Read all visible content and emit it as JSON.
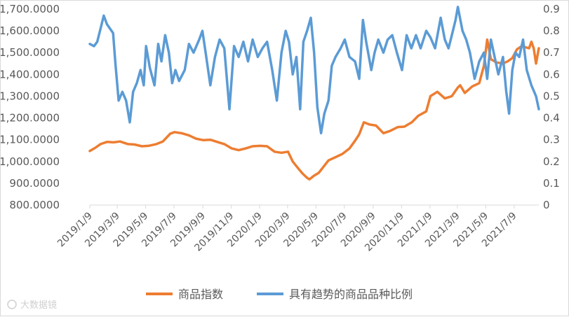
{
  "chart_data": {
    "type": "line",
    "title": "",
    "xlabel": "",
    "ylabel": "",
    "y_left": {
      "min": 800,
      "max": 1700,
      "ticks": [
        "800.0000",
        "900.0000",
        "1,000.0000",
        "1,100.0000",
        "1,200.0000",
        "1,300.0000",
        "1,400.0000",
        "1,500.0000",
        "1,600.0000",
        "1,700.0000"
      ]
    },
    "y_right": {
      "min": 0,
      "max": 0.9,
      "ticks": [
        "0",
        "0.1",
        "0.2",
        "0.3",
        "0.4",
        "0.5",
        "0.6",
        "0.7",
        "0.8",
        "0.9"
      ]
    },
    "x_start": "2019-01-09",
    "x_end": "2021-08-31",
    "x_ticks": [
      {
        "date": "2019-01-09",
        "label": "2019/1/9"
      },
      {
        "date": "2019-03-09",
        "label": "2019/3/9"
      },
      {
        "date": "2019-05-09",
        "label": "2019/5/9"
      },
      {
        "date": "2019-07-09",
        "label": "2019/7/9"
      },
      {
        "date": "2019-09-09",
        "label": "2019/9/9"
      },
      {
        "date": "2019-11-09",
        "label": "2019/11/9"
      },
      {
        "date": "2020-01-09",
        "label": "2020/1/9"
      },
      {
        "date": "2020-03-09",
        "label": "2020/3/9"
      },
      {
        "date": "2020-05-09",
        "label": "2020/5/9"
      },
      {
        "date": "2020-07-09",
        "label": "2020/7/9"
      },
      {
        "date": "2020-09-09",
        "label": "2020/9/9"
      },
      {
        "date": "2020-11-09",
        "label": "2020/11/9"
      },
      {
        "date": "2021-01-09",
        "label": "2021/1/9"
      },
      {
        "date": "2021-03-09",
        "label": "2021/3/9"
      },
      {
        "date": "2021-05-09",
        "label": "2021/5/9"
      },
      {
        "date": "2021-07-09",
        "label": "2021/7/9"
      }
    ],
    "legend_placement": "bottom",
    "grid": false,
    "series": [
      {
        "name": "商品指数",
        "axis": "left",
        "color": "#ED7D31",
        "points": [
          [
            "2019-01-09",
            1048
          ],
          [
            "2019-01-20",
            1062
          ],
          [
            "2019-02-01",
            1080
          ],
          [
            "2019-02-15",
            1090
          ],
          [
            "2019-03-01",
            1088
          ],
          [
            "2019-03-15",
            1092
          ],
          [
            "2019-04-01",
            1080
          ],
          [
            "2019-04-15",
            1078
          ],
          [
            "2019-05-01",
            1070
          ],
          [
            "2019-05-15",
            1072
          ],
          [
            "2019-06-01",
            1080
          ],
          [
            "2019-06-15",
            1092
          ],
          [
            "2019-07-01",
            1128
          ],
          [
            "2019-07-10",
            1135
          ],
          [
            "2019-07-25",
            1130
          ],
          [
            "2019-08-10",
            1120
          ],
          [
            "2019-08-25",
            1105
          ],
          [
            "2019-09-10",
            1098
          ],
          [
            "2019-09-25",
            1100
          ],
          [
            "2019-10-10",
            1090
          ],
          [
            "2019-10-25",
            1080
          ],
          [
            "2019-11-10",
            1060
          ],
          [
            "2019-11-25",
            1052
          ],
          [
            "2019-12-10",
            1060
          ],
          [
            "2019-12-25",
            1070
          ],
          [
            "2020-01-10",
            1072
          ],
          [
            "2020-01-25",
            1070
          ],
          [
            "2020-02-10",
            1045
          ],
          [
            "2020-02-25",
            1040
          ],
          [
            "2020-03-10",
            1045
          ],
          [
            "2020-03-20",
            1000
          ],
          [
            "2020-04-01",
            968
          ],
          [
            "2020-04-10",
            945
          ],
          [
            "2020-04-20",
            925
          ],
          [
            "2020-04-25",
            918
          ],
          [
            "2020-05-05",
            935
          ],
          [
            "2020-05-15",
            948
          ],
          [
            "2020-05-25",
            975
          ],
          [
            "2020-06-05",
            1005
          ],
          [
            "2020-06-20",
            1020
          ],
          [
            "2020-07-05",
            1035
          ],
          [
            "2020-07-20",
            1060
          ],
          [
            "2020-08-01",
            1095
          ],
          [
            "2020-08-10",
            1125
          ],
          [
            "2020-08-20",
            1180
          ],
          [
            "2020-09-01",
            1170
          ],
          [
            "2020-09-15",
            1165
          ],
          [
            "2020-10-01",
            1130
          ],
          [
            "2020-10-15",
            1140
          ],
          [
            "2020-11-01",
            1158
          ],
          [
            "2020-11-15",
            1160
          ],
          [
            "2020-12-01",
            1180
          ],
          [
            "2020-12-15",
            1210
          ],
          [
            "2021-01-01",
            1230
          ],
          [
            "2021-01-10",
            1300
          ],
          [
            "2021-01-25",
            1320
          ],
          [
            "2021-02-10",
            1290
          ],
          [
            "2021-02-25",
            1300
          ],
          [
            "2021-03-10",
            1340
          ],
          [
            "2021-03-15",
            1350
          ],
          [
            "2021-03-25",
            1315
          ],
          [
            "2021-04-10",
            1345
          ],
          [
            "2021-04-25",
            1360
          ],
          [
            "2021-05-05",
            1440
          ],
          [
            "2021-05-12",
            1560
          ],
          [
            "2021-05-20",
            1470
          ],
          [
            "2021-06-01",
            1455
          ],
          [
            "2021-06-15",
            1450
          ],
          [
            "2021-06-25",
            1460
          ],
          [
            "2021-07-05",
            1475
          ],
          [
            "2021-07-15",
            1515
          ],
          [
            "2021-07-25",
            1530
          ],
          [
            "2021-08-10",
            1520
          ],
          [
            "2021-08-15",
            1550
          ],
          [
            "2021-08-20",
            1520
          ],
          [
            "2021-08-25",
            1450
          ],
          [
            "2021-08-31",
            1520
          ]
        ]
      },
      {
        "name": "具有趋势的商品品种比例",
        "axis": "right",
        "color": "#5B9BD5",
        "points": [
          [
            "2019-01-09",
            0.74
          ],
          [
            "2019-01-18",
            0.73
          ],
          [
            "2019-01-25",
            0.75
          ],
          [
            "2019-02-01",
            0.81
          ],
          [
            "2019-02-08",
            0.87
          ],
          [
            "2019-02-15",
            0.83
          ],
          [
            "2019-02-28",
            0.79
          ],
          [
            "2019-03-05",
            0.65
          ],
          [
            "2019-03-12",
            0.48
          ],
          [
            "2019-03-20",
            0.52
          ],
          [
            "2019-03-28",
            0.48
          ],
          [
            "2019-04-05",
            0.38
          ],
          [
            "2019-04-12",
            0.52
          ],
          [
            "2019-04-20",
            0.56
          ],
          [
            "2019-04-28",
            0.62
          ],
          [
            "2019-05-05",
            0.55
          ],
          [
            "2019-05-10",
            0.73
          ],
          [
            "2019-05-18",
            0.63
          ],
          [
            "2019-05-28",
            0.55
          ],
          [
            "2019-06-05",
            0.74
          ],
          [
            "2019-06-12",
            0.66
          ],
          [
            "2019-06-20",
            0.78
          ],
          [
            "2019-06-28",
            0.7
          ],
          [
            "2019-07-05",
            0.56
          ],
          [
            "2019-07-12",
            0.62
          ],
          [
            "2019-07-20",
            0.57
          ],
          [
            "2019-08-01",
            0.62
          ],
          [
            "2019-08-10",
            0.74
          ],
          [
            "2019-08-20",
            0.7
          ],
          [
            "2019-09-01",
            0.76
          ],
          [
            "2019-09-08",
            0.8
          ],
          [
            "2019-09-15",
            0.7
          ],
          [
            "2019-09-25",
            0.55
          ],
          [
            "2019-10-05",
            0.68
          ],
          [
            "2019-10-15",
            0.76
          ],
          [
            "2019-10-25",
            0.72
          ],
          [
            "2019-11-05",
            0.44
          ],
          [
            "2019-11-15",
            0.73
          ],
          [
            "2019-11-25",
            0.68
          ],
          [
            "2019-12-05",
            0.75
          ],
          [
            "2019-12-15",
            0.66
          ],
          [
            "2019-12-25",
            0.76
          ],
          [
            "2020-01-05",
            0.68
          ],
          [
            "2020-01-15",
            0.72
          ],
          [
            "2020-01-25",
            0.75
          ],
          [
            "2020-02-05",
            0.62
          ],
          [
            "2020-02-15",
            0.48
          ],
          [
            "2020-02-25",
            0.7
          ],
          [
            "2020-03-05",
            0.8
          ],
          [
            "2020-03-12",
            0.75
          ],
          [
            "2020-03-20",
            0.6
          ],
          [
            "2020-03-28",
            0.68
          ],
          [
            "2020-04-05",
            0.44
          ],
          [
            "2020-04-12",
            0.75
          ],
          [
            "2020-04-20",
            0.8
          ],
          [
            "2020-04-28",
            0.86
          ],
          [
            "2020-05-05",
            0.7
          ],
          [
            "2020-05-12",
            0.45
          ],
          [
            "2020-05-20",
            0.33
          ],
          [
            "2020-05-27",
            0.42
          ],
          [
            "2020-06-05",
            0.48
          ],
          [
            "2020-06-12",
            0.64
          ],
          [
            "2020-06-20",
            0.68
          ],
          [
            "2020-07-01",
            0.72
          ],
          [
            "2020-07-10",
            0.76
          ],
          [
            "2020-07-20",
            0.68
          ],
          [
            "2020-08-01",
            0.66
          ],
          [
            "2020-08-10",
            0.58
          ],
          [
            "2020-08-18",
            0.85
          ],
          [
            "2020-08-25",
            0.75
          ],
          [
            "2020-09-05",
            0.62
          ],
          [
            "2020-09-12",
            0.7
          ],
          [
            "2020-09-20",
            0.76
          ],
          [
            "2020-10-01",
            0.7
          ],
          [
            "2020-10-10",
            0.76
          ],
          [
            "2020-10-20",
            0.78
          ],
          [
            "2020-10-30",
            0.7
          ],
          [
            "2020-11-10",
            0.62
          ],
          [
            "2020-11-20",
            0.78
          ],
          [
            "2020-11-30",
            0.72
          ],
          [
            "2020-12-10",
            0.78
          ],
          [
            "2020-12-20",
            0.72
          ],
          [
            "2021-01-01",
            0.8
          ],
          [
            "2021-01-10",
            0.77
          ],
          [
            "2021-01-20",
            0.72
          ],
          [
            "2021-02-01",
            0.86
          ],
          [
            "2021-02-10",
            0.76
          ],
          [
            "2021-02-18",
            0.72
          ],
          [
            "2021-02-25",
            0.78
          ],
          [
            "2021-03-05",
            0.85
          ],
          [
            "2021-03-10",
            0.91
          ],
          [
            "2021-03-20",
            0.8
          ],
          [
            "2021-03-28",
            0.76
          ],
          [
            "2021-04-05",
            0.7
          ],
          [
            "2021-04-15",
            0.58
          ],
          [
            "2021-04-25",
            0.66
          ],
          [
            "2021-05-05",
            0.7
          ],
          [
            "2021-05-12",
            0.58
          ],
          [
            "2021-05-20",
            0.76
          ],
          [
            "2021-05-28",
            0.68
          ],
          [
            "2021-06-05",
            0.6
          ],
          [
            "2021-06-15",
            0.68
          ],
          [
            "2021-06-22",
            0.52
          ],
          [
            "2021-06-28",
            0.42
          ],
          [
            "2021-07-05",
            0.62
          ],
          [
            "2021-07-12",
            0.7
          ],
          [
            "2021-07-20",
            0.68
          ],
          [
            "2021-07-28",
            0.76
          ],
          [
            "2021-08-05",
            0.62
          ],
          [
            "2021-08-15",
            0.55
          ],
          [
            "2021-08-25",
            0.5
          ],
          [
            "2021-08-31",
            0.44
          ]
        ]
      }
    ]
  },
  "watermark": "大数据镜"
}
